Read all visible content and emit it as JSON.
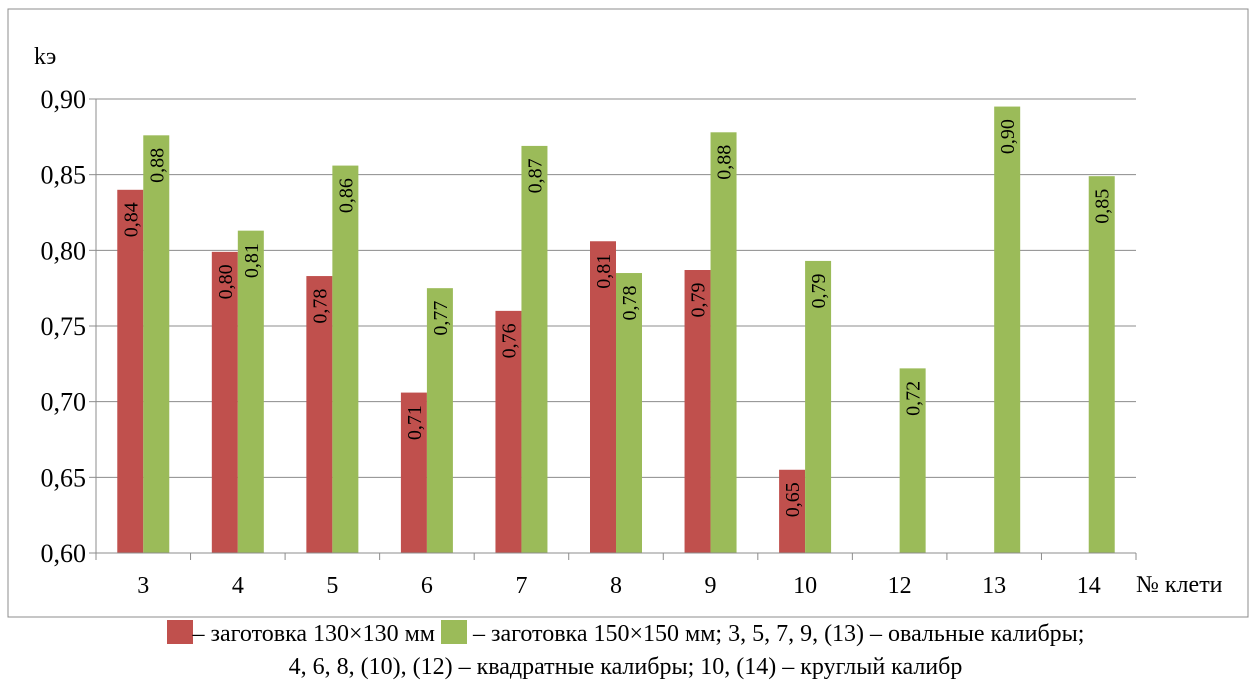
{
  "chart_data": {
    "type": "bar",
    "ylabel": "kэ",
    "xlabel": "№ клети",
    "ylim": [
      0.6,
      0.9
    ],
    "ytick_step": 0.05,
    "yticks": [
      "0,60",
      "0,65",
      "0,70",
      "0,75",
      "0,80",
      "0,85",
      "0,90"
    ],
    "grid": true,
    "categories": [
      "3",
      "4",
      "5",
      "6",
      "7",
      "8",
      "9",
      "10",
      "12",
      "13",
      "14"
    ],
    "series": [
      {
        "color": "#c0504d",
        "values": [
          0.84,
          0.799,
          0.783,
          0.706,
          0.76,
          0.806,
          0.787,
          0.655,
          null,
          null,
          null
        ],
        "labels": [
          "0,84",
          "0,80",
          "0,78",
          "0,71",
          "0,76",
          "0,81",
          "0,79",
          "0,65",
          null,
          null,
          null
        ]
      },
      {
        "color": "#9bbb59",
        "values": [
          0.876,
          0.813,
          0.856,
          0.775,
          0.869,
          0.785,
          0.878,
          0.793,
          0.722,
          0.895,
          0.849
        ],
        "labels": [
          "0,88",
          "0,81",
          "0,86",
          "0,77",
          "0,87",
          "0,78",
          "0,88",
          "0,79",
          "0,72",
          "0,90",
          "0,85"
        ]
      }
    ]
  },
  "caption": {
    "line1_red": "– заготовка 130×130 мм",
    "line1_green": " –  заготовка 150×150 мм; 3, 5, 7, 9, (13) – овальные калибры;",
    "line2": "4, 6, 8, (10), (12) – квадратные калибры; 10, (14) – круглый калибр"
  }
}
